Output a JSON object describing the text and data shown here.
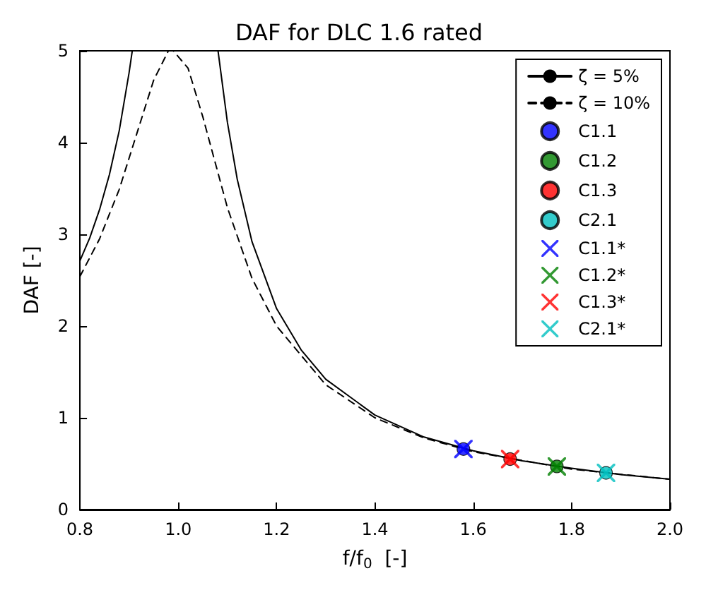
{
  "chart_data": {
    "type": "line",
    "title": "DAF for DLC 1.6 rated",
    "xlabel": "f/f$_{0}$  [-]",
    "ylabel": "DAF [-]",
    "xlim": [
      0.8,
      2.0
    ],
    "xticks": [
      {
        "value": 0.8,
        "label": "0.8"
      },
      {
        "value": 1.0,
        "label": "1.0"
      },
      {
        "value": 1.2,
        "label": "1.2"
      },
      {
        "value": 1.4,
        "label": "1.4"
      },
      {
        "value": 1.6,
        "label": "1.6"
      },
      {
        "value": 1.8,
        "label": "1.8"
      },
      {
        "value": 2.0,
        "label": "2.0"
      }
    ],
    "ylim": [
      0,
      5
    ],
    "yticks": [
      0,
      1,
      2,
      3,
      4,
      5
    ],
    "grid": false,
    "legend": "top right",
    "series": [
      {
        "name": "ζ = 5%",
        "color": "#000000",
        "line_style": "solid",
        "marker": "none",
        "x": [
          0.8,
          0.82,
          0.84,
          0.86,
          0.88,
          0.9,
          0.9065,
          1.0,
          1.0809,
          1.1,
          1.12,
          1.15,
          1.2,
          1.25,
          1.3,
          1.4,
          1.5,
          1.6,
          1.7,
          1.8,
          1.9,
          2.0
        ],
        "values": [
          2.71,
          2.96,
          3.27,
          3.65,
          4.13,
          4.76,
          5,
          null,
          5,
          4.22,
          3.6,
          2.92,
          2.19,
          1.74,
          1.42,
          1.03,
          0.79,
          0.64,
          0.53,
          0.45,
          0.38,
          0.33
        ]
      },
      {
        "name": "ζ = 10%",
        "color": "#000000",
        "line_style": "dashed",
        "marker": "none",
        "x": [
          0.8,
          0.84,
          0.88,
          0.92,
          0.95,
          0.98,
          0.99,
          1.02,
          1.05,
          1.1,
          1.15,
          1.2,
          1.3,
          1.4,
          1.5,
          1.6,
          1.8,
          2.0
        ],
        "values": [
          2.54,
          2.95,
          3.49,
          4.17,
          4.68,
          5.0,
          5.0,
          4.81,
          4.28,
          3.29,
          2.52,
          2.0,
          1.36,
          1.0,
          0.78,
          0.63,
          0.44,
          0.33
        ]
      },
      {
        "name": "C1.1",
        "type": "scatter",
        "color": "#0000ff",
        "marker": "circle",
        "x": [
          1.58
        ],
        "values": [
          0.66
        ]
      },
      {
        "name": "C1.2",
        "type": "scatter",
        "color": "#008000",
        "marker": "circle",
        "x": [
          1.77
        ],
        "values": [
          0.47
        ]
      },
      {
        "name": "C1.3",
        "type": "scatter",
        "color": "#ff0000",
        "marker": "circle",
        "x": [
          1.675
        ],
        "values": [
          0.55
        ]
      },
      {
        "name": "C2.1",
        "type": "scatter",
        "color": "#00bfbf",
        "marker": "circle",
        "x": [
          1.87
        ],
        "values": [
          0.4
        ]
      },
      {
        "name": "C1.1*",
        "type": "scatter",
        "color": "#0000ff",
        "marker": "cross",
        "x": [
          1.58
        ],
        "values": [
          0.66
        ]
      },
      {
        "name": "C1.2*",
        "type": "scatter",
        "color": "#008000",
        "marker": "cross",
        "x": [
          1.77
        ],
        "values": [
          0.47
        ]
      },
      {
        "name": "C1.3*",
        "type": "scatter",
        "color": "#ff0000",
        "marker": "cross",
        "x": [
          1.675
        ],
        "values": [
          0.55
        ]
      },
      {
        "name": "C2.1*",
        "type": "scatter",
        "color": "#00bfbf",
        "marker": "cross",
        "x": [
          1.87
        ],
        "values": [
          0.4
        ]
      }
    ]
  }
}
